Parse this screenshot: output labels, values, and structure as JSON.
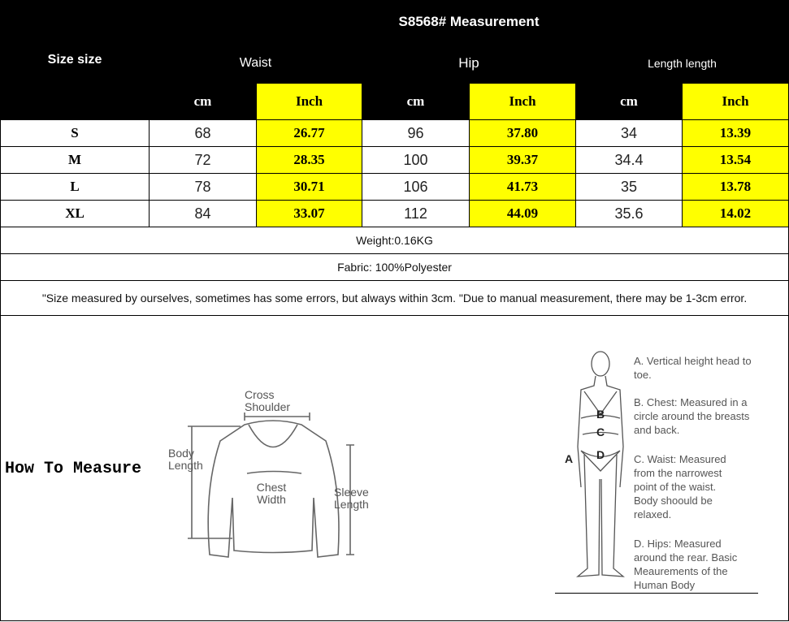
{
  "title": "S8568# Measurement",
  "size_header": "Size size",
  "groups": [
    "Waist",
    "Hip",
    "Length length"
  ],
  "units": [
    "cm",
    "Inch",
    "cm",
    "Inch",
    "cm",
    "Inch"
  ],
  "rows": [
    {
      "size": "S",
      "values": [
        "68",
        "26.77",
        "96",
        "37.80",
        "34",
        "13.39"
      ]
    },
    {
      "size": "M",
      "values": [
        "72",
        "28.35",
        "100",
        "39.37",
        "34.4",
        "13.54"
      ]
    },
    {
      "size": "L",
      "values": [
        "78",
        "30.71",
        "106",
        "41.73",
        "35",
        "13.78"
      ]
    },
    {
      "size": "XL",
      "values": [
        "84",
        "33.07",
        "112",
        "44.09",
        "35.6",
        "14.02"
      ]
    }
  ],
  "weight": "Weight:0.16KG",
  "fabric": "Fabric: 100%Polyester",
  "note": "\"Size measured by ourselves, sometimes has some errors, but always within 3cm. \"Due to manual measurement, there may be 1-3cm error.",
  "how_to_measure": "How To Measure",
  "garment_labels": {
    "cross_shoulder": "Cross Shoulder",
    "body_length": "Body Length",
    "chest_width": "Chest Width",
    "sleeve_length": "Sleeve Length"
  },
  "body_labels": {
    "a": "A",
    "b": "B",
    "c": "C",
    "d": "D"
  },
  "body_notes": [
    "A. Vertical height head to toe.",
    "B. Chest: Measured in a circle around the breasts and back.",
    "C. Waist: Measured from the narrowest point of the waist. Body shoould be relaxed.",
    "D. Hips: Measured around the rear. Basic Meaurements of the Human Body"
  ],
  "colors": {
    "header_bg": "#000000",
    "inch_bg": "#ffff00"
  }
}
